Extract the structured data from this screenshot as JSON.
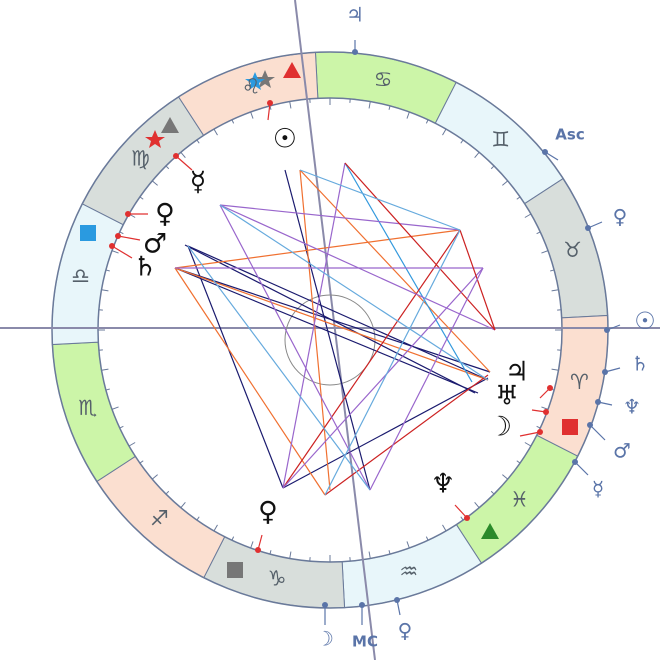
{
  "signs": [
    "♋",
    "♊",
    "♉",
    "♈",
    "♓",
    "♒",
    "♑",
    "♐",
    "♏",
    "♎",
    "♍",
    "♌"
  ],
  "planets": [
    "☉",
    "☿",
    "♀",
    "♂",
    "♄",
    "♃",
    "♅",
    "☽",
    "♆",
    "♀"
  ],
  "outer": [
    "♃",
    "Asc",
    "♀",
    "☉",
    "♄",
    "♆",
    "♂",
    "☿",
    "☽",
    "MC",
    "♀"
  ]
}
